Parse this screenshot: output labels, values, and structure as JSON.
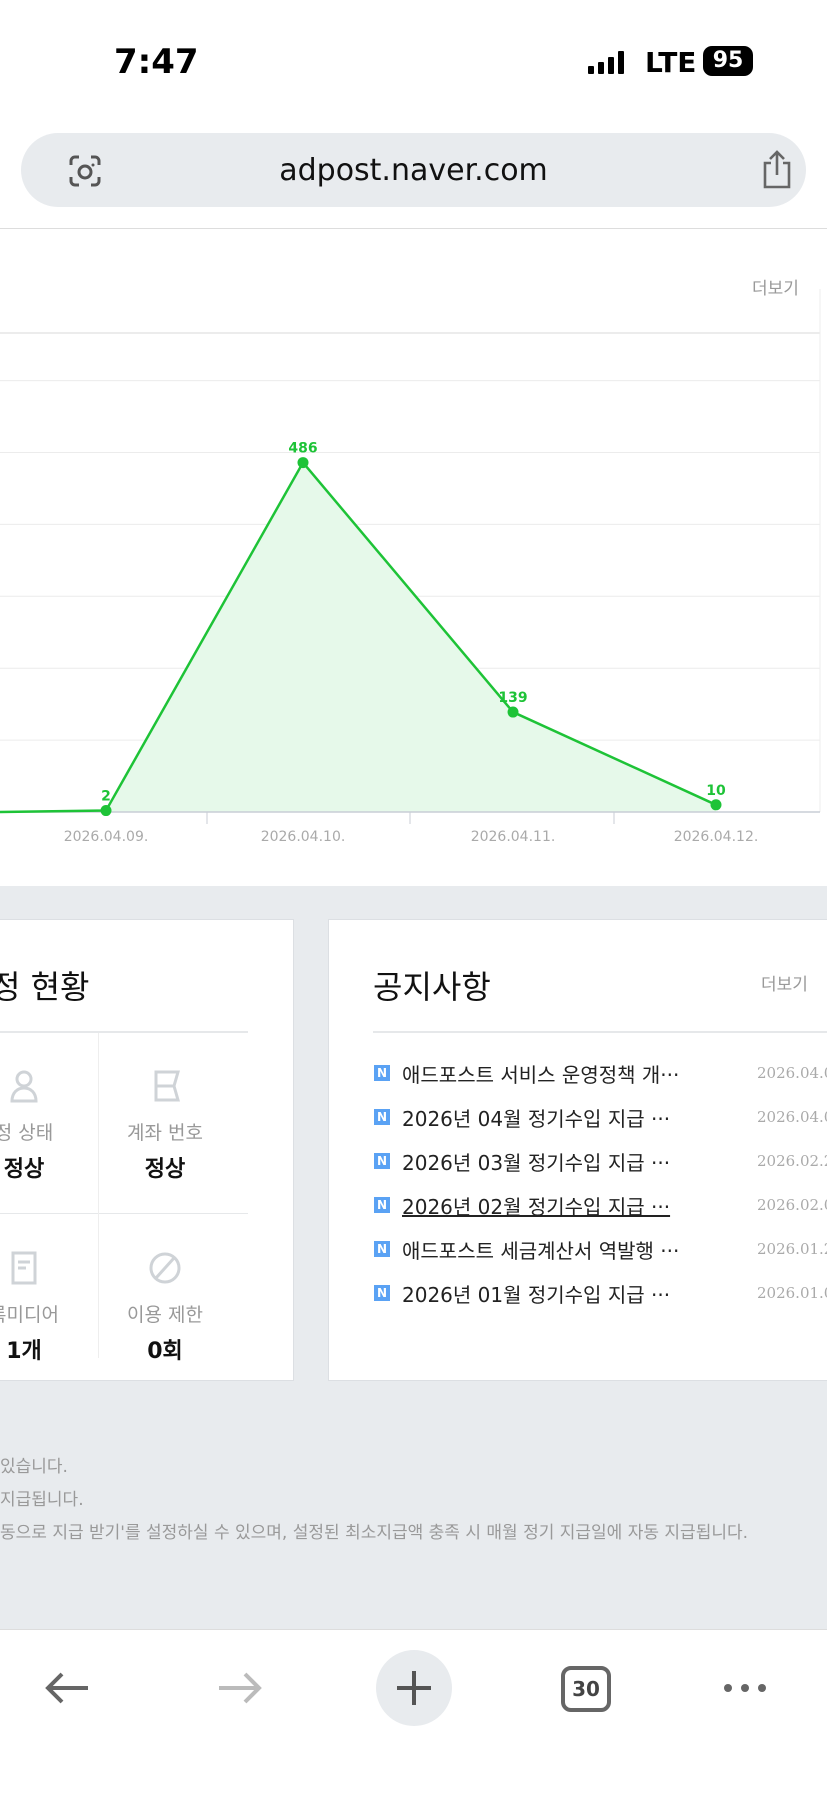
{
  "status": {
    "time": "7:47",
    "network": "LTE",
    "battery": "95"
  },
  "browser": {
    "url": "adpost.naver.com",
    "tabs_count": "30"
  },
  "chart_section": {
    "more_label": "더보기"
  },
  "chart_data": {
    "type": "line",
    "categories": [
      "",
      "2026.04.09.",
      "2026.04.10.",
      "2026.04.11.",
      "2026.04.12."
    ],
    "values": [
      0,
      2,
      486,
      139,
      10
    ],
    "data_labels": [
      "",
      "2",
      "486",
      "139",
      "10"
    ],
    "ylim": [
      0,
      600
    ],
    "grid": true,
    "color": "#1ec337",
    "fill": "#e6f9ea"
  },
  "status_card": {
    "title": "정 현황",
    "items": [
      {
        "label": "정 상태",
        "value": "정상",
        "icon": "user-icon"
      },
      {
        "label": "계좌 번호",
        "value": "정상",
        "icon": "account-book-icon"
      },
      {
        "label": "록미디어",
        "value": "1개",
        "icon": "document-icon"
      },
      {
        "label": "이용 제한",
        "value": "0회",
        "icon": "prohibited-icon"
      }
    ]
  },
  "notice_card": {
    "title": "공지사항",
    "more_label": "더보기",
    "badge": "N",
    "items": [
      {
        "title": "애드포스트 서비스 운영정책 개···",
        "date": "2026.04.0"
      },
      {
        "title": "2026년 04월 정기수입 지급 ···",
        "date": "2026.04.0"
      },
      {
        "title": "2026년 03월 정기수입 지급 ···",
        "date": "2026.02.2"
      },
      {
        "title": "2026년 02월 정기수입 지급 ···",
        "date": "2026.02.0"
      },
      {
        "title": "애드포스트 세금계산서 역발행 ···",
        "date": "2026.01.2"
      },
      {
        "title": "2026년 01월 정기수입 지급 ···",
        "date": "2026.01.0"
      }
    ]
  },
  "footer": {
    "lines": [
      "있습니다.",
      "지급됩니다.",
      "동으로 지급 받기'를 설정하실 수 있으며, 설정된 최소지급액 충족 시 매월 정기 지급일에 자동 지급됩니다."
    ]
  }
}
